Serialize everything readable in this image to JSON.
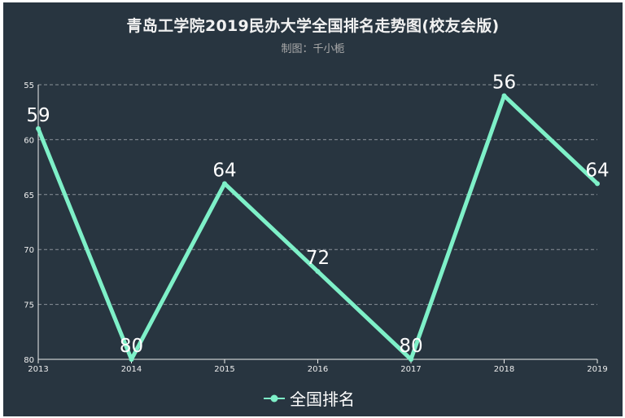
{
  "chart_data": {
    "type": "line",
    "title": "青岛工学院2019民办大学全国排名走势图(校友会版)",
    "subtitle": "制图：千小栀",
    "x": [
      "2013",
      "2014",
      "2015",
      "2016",
      "2017",
      "2018",
      "2019"
    ],
    "y_ticks": [
      "55",
      "60",
      "65",
      "70",
      "75",
      "80"
    ],
    "ylim": [
      55,
      80
    ],
    "y_inverted": true,
    "grid": true,
    "legend_position": "bottom",
    "series": [
      {
        "name": "全国排名",
        "values": [
          59,
          80,
          64,
          72,
          80,
          56,
          64
        ],
        "color": "#7ef0c8"
      }
    ],
    "data_labels": [
      "59",
      "80",
      "64",
      "72",
      "80",
      "56",
      "64"
    ]
  },
  "colors": {
    "background": "#283540",
    "grid": "#8a9299",
    "axis_text": "#eeeeee",
    "line": "#7ef0c8"
  }
}
